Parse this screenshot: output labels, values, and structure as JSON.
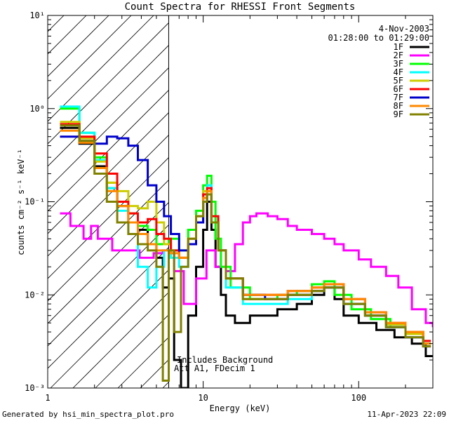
{
  "chart_data": {
    "type": "line",
    "title": "Count Spectra for RHESSI Front Segments",
    "xlabel": "Energy (keV)",
    "ylabel": "counts cm⁻² s⁻¹ keV⁻¹",
    "xscale": "log",
    "yscale": "log",
    "xlim": [
      1,
      300
    ],
    "ylim": [
      0.001,
      10
    ],
    "x_ticks": [
      {
        "value": 1,
        "label": "1"
      },
      {
        "value": 10,
        "label": "10"
      },
      {
        "value": 100,
        "label": "100"
      }
    ],
    "y_ticks": [
      {
        "value": 0.001,
        "label": "10⁻³"
      },
      {
        "value": 0.01,
        "label": "10⁻²"
      },
      {
        "value": 0.1,
        "label": "10⁻¹"
      },
      {
        "value": 1,
        "label": "10⁰"
      },
      {
        "value": 10,
        "label": "10¹"
      }
    ],
    "date": "4-Nov-2003",
    "time_range": "01:28:00 to 01:29:00",
    "annotation_line1": "Includes Background",
    "annotation_line2": "Att A1, FDecim 1",
    "hatched_region_xmax": 6,
    "legend_position": "top-right",
    "series": [
      {
        "name": "1F",
        "color": "#000000",
        "points": [
          [
            1.2,
            0.62
          ],
          [
            1.6,
            0.42
          ],
          [
            2.0,
            0.24
          ],
          [
            2.4,
            0.14
          ],
          [
            2.8,
            0.09
          ],
          [
            3.3,
            0.06
          ],
          [
            3.8,
            0.05
          ],
          [
            4.4,
            0.035
          ],
          [
            5.0,
            0.025
          ],
          [
            5.5,
            0.012
          ],
          [
            6.0,
            0.015
          ],
          [
            6.5,
            0.002
          ],
          [
            7.2,
            0.001
          ],
          [
            8.0,
            0.006
          ],
          [
            9.0,
            0.02
          ],
          [
            10.0,
            0.05
          ],
          [
            10.6,
            0.1
          ],
          [
            11.3,
            0.05
          ],
          [
            12.0,
            0.02
          ],
          [
            13.0,
            0.01
          ],
          [
            14.0,
            0.006
          ],
          [
            16.0,
            0.005
          ],
          [
            20.0,
            0.006
          ],
          [
            25.0,
            0.006
          ],
          [
            30.0,
            0.007
          ],
          [
            40.0,
            0.008
          ],
          [
            50.0,
            0.01
          ],
          [
            60.0,
            0.012
          ],
          [
            70.0,
            0.009
          ],
          [
            80.0,
            0.006
          ],
          [
            100.0,
            0.005
          ],
          [
            130.0,
            0.0042
          ],
          [
            170.0,
            0.0035
          ],
          [
            220.0,
            0.003
          ],
          [
            270.0,
            0.0022
          ]
        ]
      },
      {
        "name": "2F",
        "color": "#ff00ff",
        "points": [
          [
            1.2,
            0.075
          ],
          [
            1.4,
            0.055
          ],
          [
            1.7,
            0.04
          ],
          [
            1.9,
            0.055
          ],
          [
            2.1,
            0.04
          ],
          [
            2.6,
            0.03
          ],
          [
            3.2,
            0.03
          ],
          [
            3.9,
            0.025
          ],
          [
            4.8,
            0.028
          ],
          [
            5.5,
            0.03
          ],
          [
            6.0,
            0.028
          ],
          [
            6.5,
            0.018
          ],
          [
            7.5,
            0.008
          ],
          [
            9.0,
            0.015
          ],
          [
            10.5,
            0.03
          ],
          [
            12.0,
            0.02
          ],
          [
            14.0,
            0.018
          ],
          [
            16.0,
            0.035
          ],
          [
            18.0,
            0.06
          ],
          [
            20.0,
            0.07
          ],
          [
            22.0,
            0.075
          ],
          [
            26.0,
            0.07
          ],
          [
            30.0,
            0.065
          ],
          [
            35.0,
            0.055
          ],
          [
            40.0,
            0.05
          ],
          [
            50.0,
            0.045
          ],
          [
            60.0,
            0.04
          ],
          [
            70.0,
            0.035
          ],
          [
            80.0,
            0.03
          ],
          [
            100.0,
            0.024
          ],
          [
            120.0,
            0.02
          ],
          [
            150.0,
            0.016
          ],
          [
            180.0,
            0.012
          ],
          [
            220.0,
            0.007
          ],
          [
            270.0,
            0.005
          ],
          [
            300.0,
            0.0045
          ]
        ]
      },
      {
        "name": "3F",
        "color": "#00ff00",
        "points": [
          [
            1.2,
            1.0
          ],
          [
            1.6,
            0.55
          ],
          [
            2.0,
            0.3
          ],
          [
            2.4,
            0.16
          ],
          [
            2.8,
            0.1
          ],
          [
            3.3,
            0.075
          ],
          [
            3.8,
            0.055
          ],
          [
            4.4,
            0.05
          ],
          [
            5.0,
            0.035
          ],
          [
            6.0,
            0.04
          ],
          [
            7.0,
            0.03
          ],
          [
            8.0,
            0.05
          ],
          [
            9.0,
            0.08
          ],
          [
            10.0,
            0.15
          ],
          [
            10.6,
            0.19
          ],
          [
            11.3,
            0.1
          ],
          [
            12.0,
            0.04
          ],
          [
            13.0,
            0.02
          ],
          [
            15.0,
            0.012
          ],
          [
            20.0,
            0.009
          ],
          [
            25.0,
            0.009
          ],
          [
            30.0,
            0.01
          ],
          [
            40.0,
            0.011
          ],
          [
            50.0,
            0.013
          ],
          [
            60.0,
            0.014
          ],
          [
            70.0,
            0.01
          ],
          [
            90.0,
            0.007
          ],
          [
            120.0,
            0.0055
          ],
          [
            160.0,
            0.0045
          ],
          [
            200.0,
            0.004
          ],
          [
            260.0,
            0.003
          ]
        ]
      },
      {
        "name": "4F",
        "color": "#00ffff",
        "points": [
          [
            1.2,
            1.05
          ],
          [
            1.6,
            0.55
          ],
          [
            2.0,
            0.28
          ],
          [
            2.4,
            0.14
          ],
          [
            2.8,
            0.08
          ],
          [
            3.3,
            0.045
          ],
          [
            3.8,
            0.02
          ],
          [
            4.4,
            0.012
          ],
          [
            5.0,
            0.02
          ],
          [
            5.6,
            0.03
          ],
          [
            6.2,
            0.025
          ],
          [
            7.0,
            0.02
          ],
          [
            8.0,
            0.035
          ],
          [
            9.0,
            0.06
          ],
          [
            10.0,
            0.12
          ],
          [
            10.6,
            0.15
          ],
          [
            11.3,
            0.07
          ],
          [
            12.5,
            0.03
          ],
          [
            14.0,
            0.012
          ],
          [
            18.0,
            0.008
          ],
          [
            25.0,
            0.008
          ],
          [
            35.0,
            0.009
          ],
          [
            50.0,
            0.011
          ],
          [
            60.0,
            0.012
          ],
          [
            80.0,
            0.008
          ],
          [
            110.0,
            0.006
          ],
          [
            150.0,
            0.0045
          ],
          [
            200.0,
            0.0035
          ],
          [
            260.0,
            0.003
          ]
        ]
      },
      {
        "name": "5F",
        "color": "#cccc00",
        "points": [
          [
            1.2,
            0.72
          ],
          [
            1.6,
            0.48
          ],
          [
            2.0,
            0.27
          ],
          [
            2.4,
            0.16
          ],
          [
            2.8,
            0.13
          ],
          [
            3.3,
            0.09
          ],
          [
            3.8,
            0.085
          ],
          [
            4.4,
            0.1
          ],
          [
            5.0,
            0.06
          ],
          [
            5.6,
            0.035
          ],
          [
            6.2,
            0.03
          ],
          [
            7.0,
            0.025
          ],
          [
            8.0,
            0.04
          ],
          [
            9.0,
            0.07
          ],
          [
            10.0,
            0.13
          ],
          [
            10.6,
            0.12
          ],
          [
            11.3,
            0.06
          ],
          [
            12.5,
            0.03
          ],
          [
            14.0,
            0.015
          ],
          [
            18.0,
            0.009
          ],
          [
            25.0,
            0.009
          ],
          [
            35.0,
            0.01
          ],
          [
            50.0,
            0.011
          ],
          [
            60.0,
            0.012
          ],
          [
            80.0,
            0.008
          ],
          [
            110.0,
            0.006
          ],
          [
            150.0,
            0.0048
          ],
          [
            200.0,
            0.0038
          ],
          [
            260.0,
            0.003
          ]
        ]
      },
      {
        "name": "6F",
        "color": "#ff0000",
        "points": [
          [
            1.2,
            0.68
          ],
          [
            1.6,
            0.5
          ],
          [
            2.0,
            0.33
          ],
          [
            2.4,
            0.2
          ],
          [
            2.8,
            0.1
          ],
          [
            3.3,
            0.075
          ],
          [
            3.8,
            0.06
          ],
          [
            4.4,
            0.065
          ],
          [
            5.0,
            0.045
          ],
          [
            5.6,
            0.04
          ],
          [
            6.2,
            0.03
          ],
          [
            7.0,
            0.025
          ],
          [
            8.0,
            0.035
          ],
          [
            9.0,
            0.06
          ],
          [
            10.0,
            0.12
          ],
          [
            10.6,
            0.14
          ],
          [
            11.3,
            0.07
          ],
          [
            12.5,
            0.03
          ],
          [
            14.0,
            0.015
          ],
          [
            18.0,
            0.01
          ],
          [
            25.0,
            0.01
          ],
          [
            35.0,
            0.011
          ],
          [
            50.0,
            0.012
          ],
          [
            60.0,
            0.013
          ],
          [
            80.0,
            0.009
          ],
          [
            110.0,
            0.0065
          ],
          [
            150.0,
            0.005
          ],
          [
            200.0,
            0.004
          ],
          [
            260.0,
            0.0032
          ]
        ]
      },
      {
        "name": "7F",
        "color": "#0000cc",
        "points": [
          [
            1.2,
            0.5
          ],
          [
            1.6,
            0.45
          ],
          [
            2.0,
            0.42
          ],
          [
            2.4,
            0.5
          ],
          [
            2.8,
            0.48
          ],
          [
            3.3,
            0.4
          ],
          [
            3.8,
            0.28
          ],
          [
            4.4,
            0.15
          ],
          [
            5.0,
            0.1
          ],
          [
            5.6,
            0.07
          ],
          [
            6.2,
            0.045
          ],
          [
            7.0,
            0.03
          ],
          [
            8.0,
            0.035
          ],
          [
            9.0,
            0.06
          ],
          [
            10.0,
            0.1
          ],
          [
            10.6,
            0.12
          ],
          [
            11.3,
            0.06
          ],
          [
            12.5,
            0.03
          ],
          [
            14.0,
            0.015
          ],
          [
            18.0,
            0.01
          ],
          [
            25.0,
            0.009
          ],
          [
            35.0,
            0.01
          ],
          [
            50.0,
            0.011
          ],
          [
            60.0,
            0.012
          ],
          [
            80.0,
            0.008
          ],
          [
            110.0,
            0.006
          ],
          [
            150.0,
            0.0045
          ],
          [
            200.0,
            0.0035
          ],
          [
            260.0,
            0.0028
          ]
        ]
      },
      {
        "name": "8F",
        "color": "#ff8800",
        "points": [
          [
            1.2,
            0.58
          ],
          [
            1.6,
            0.43
          ],
          [
            2.0,
            0.23
          ],
          [
            2.4,
            0.13
          ],
          [
            2.8,
            0.09
          ],
          [
            3.3,
            0.06
          ],
          [
            3.8,
            0.045
          ],
          [
            4.4,
            0.035
          ],
          [
            5.0,
            0.03
          ],
          [
            5.6,
            0.03
          ],
          [
            6.2,
            0.028
          ],
          [
            7.0,
            0.025
          ],
          [
            8.0,
            0.04
          ],
          [
            9.0,
            0.07
          ],
          [
            10.0,
            0.11
          ],
          [
            10.6,
            0.13
          ],
          [
            11.3,
            0.06
          ],
          [
            12.5,
            0.03
          ],
          [
            14.0,
            0.015
          ],
          [
            18.0,
            0.01
          ],
          [
            25.0,
            0.01
          ],
          [
            35.0,
            0.011
          ],
          [
            50.0,
            0.012
          ],
          [
            60.0,
            0.013
          ],
          [
            80.0,
            0.009
          ],
          [
            110.0,
            0.0065
          ],
          [
            150.0,
            0.005
          ],
          [
            200.0,
            0.004
          ],
          [
            260.0,
            0.003
          ]
        ]
      },
      {
        "name": "9F",
        "color": "#808000",
        "points": [
          [
            1.2,
            0.66
          ],
          [
            1.6,
            0.45
          ],
          [
            2.0,
            0.2
          ],
          [
            2.4,
            0.1
          ],
          [
            2.8,
            0.06
          ],
          [
            3.3,
            0.045
          ],
          [
            3.8,
            0.035
          ],
          [
            4.4,
            0.03
          ],
          [
            5.0,
            0.02
          ],
          [
            5.5,
            0.0012
          ],
          [
            6.0,
            0.03
          ],
          [
            6.5,
            0.004
          ],
          [
            7.2,
            0.02
          ],
          [
            8.0,
            0.04
          ],
          [
            9.0,
            0.07
          ],
          [
            10.0,
            0.1
          ],
          [
            10.6,
            0.12
          ],
          [
            11.3,
            0.06
          ],
          [
            12.5,
            0.03
          ],
          [
            14.0,
            0.015
          ],
          [
            18.0,
            0.009
          ],
          [
            25.0,
            0.009
          ],
          [
            35.0,
            0.01
          ],
          [
            50.0,
            0.011
          ],
          [
            60.0,
            0.012
          ],
          [
            80.0,
            0.008
          ],
          [
            110.0,
            0.006
          ],
          [
            150.0,
            0.0045
          ],
          [
            200.0,
            0.0035
          ],
          [
            260.0,
            0.0028
          ]
        ]
      }
    ]
  },
  "footer": {
    "generated_by": "Generated by hsi_min_spectra_plot.pro",
    "timestamp": "11-Apr-2023 22:09"
  }
}
